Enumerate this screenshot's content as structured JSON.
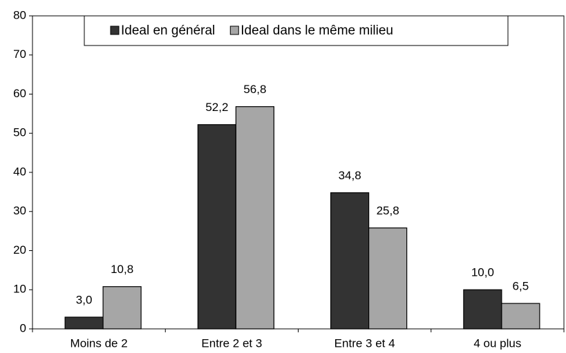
{
  "chart_data": {
    "type": "bar",
    "categories": [
      "Moins de 2",
      "Entre 2 et 3",
      "Entre 3 et 4",
      "4 ou plus"
    ],
    "series": [
      {
        "name": "Ideal en général",
        "color": "#333333",
        "values": [
          3.0,
          52.2,
          34.8,
          10.0
        ],
        "value_labels": [
          "3,0",
          "52,2",
          "34,8",
          "10,0"
        ]
      },
      {
        "name": "Ideal dans le même milieu",
        "color": "#a6a6a6",
        "values": [
          10.8,
          56.8,
          25.8,
          6.5
        ],
        "value_labels": [
          "10,8",
          "56,8",
          "25,8",
          "6,5"
        ]
      }
    ],
    "ylim": [
      0,
      80
    ],
    "yticks": [
      0,
      10,
      20,
      30,
      40,
      50,
      60,
      70,
      80
    ],
    "legend": "top"
  }
}
